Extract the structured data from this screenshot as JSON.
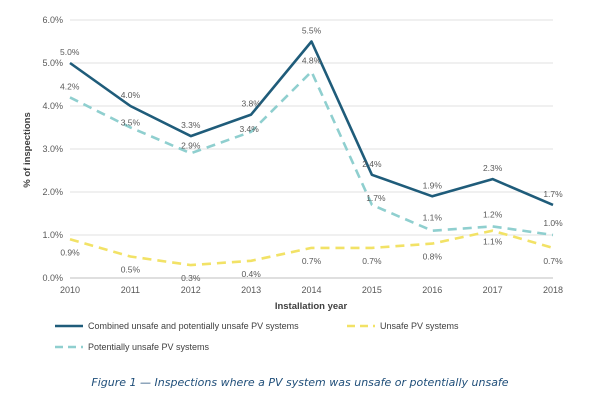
{
  "caption": "Figure 1 — Inspections where a PV system was unsafe or potentially unsafe",
  "chart_data": {
    "type": "line",
    "title": "",
    "xlabel": "Installation year",
    "ylabel": "% of inspections",
    "x": [
      2010,
      2011,
      2012,
      2013,
      2014,
      2015,
      2016,
      2017,
      2018
    ],
    "x_tick_labels": [
      "2010",
      "2011",
      "2012",
      "2013",
      "2014",
      "2015",
      "2016",
      "2017",
      "2018"
    ],
    "ylim": [
      0,
      6
    ],
    "y_ticks": [
      0,
      1,
      2,
      3,
      4,
      5,
      6
    ],
    "y_tick_labels": [
      "0.0%",
      "1.0%",
      "2.0%",
      "3.0%",
      "4.0%",
      "5.0%",
      "6.0%"
    ],
    "grid": true,
    "legend_position": "bottom",
    "series": [
      {
        "name": "Combined unsafe and potentially unsafe PV systems",
        "values": [
          5.0,
          4.0,
          3.3,
          3.8,
          5.5,
          2.4,
          1.9,
          2.3,
          1.7
        ],
        "labels": [
          "5.0%",
          "4.0%",
          "3.3%",
          "3.8%",
          "5.5%",
          "2.4%",
          "1.9%",
          "2.3%",
          "1.7%"
        ],
        "color": "#1f5c7a",
        "style": "solid"
      },
      {
        "name": "Unsafe PV systems",
        "values": [
          0.9,
          0.5,
          0.3,
          0.4,
          0.7,
          0.7,
          0.8,
          1.1,
          0.7
        ],
        "labels": [
          "0.9%",
          "0.5%",
          "0.3%",
          "0.4%",
          "0.7%",
          "0.7%",
          "0.8%",
          "1.1%",
          "0.7%"
        ],
        "color": "#f2e266",
        "style": "dashed"
      },
      {
        "name": "Potentially unsafe PV systems",
        "values": [
          4.2,
          3.5,
          2.9,
          3.4,
          4.8,
          1.7,
          1.1,
          1.2,
          1.0
        ],
        "labels": [
          "4.2%",
          "3.5%",
          "2.9%",
          "3.4%",
          "4.8%",
          "1.7%",
          "1.1%",
          "1.2%",
          "1.0%"
        ],
        "color": "#8fcfcf",
        "style": "dashed"
      }
    ]
  }
}
